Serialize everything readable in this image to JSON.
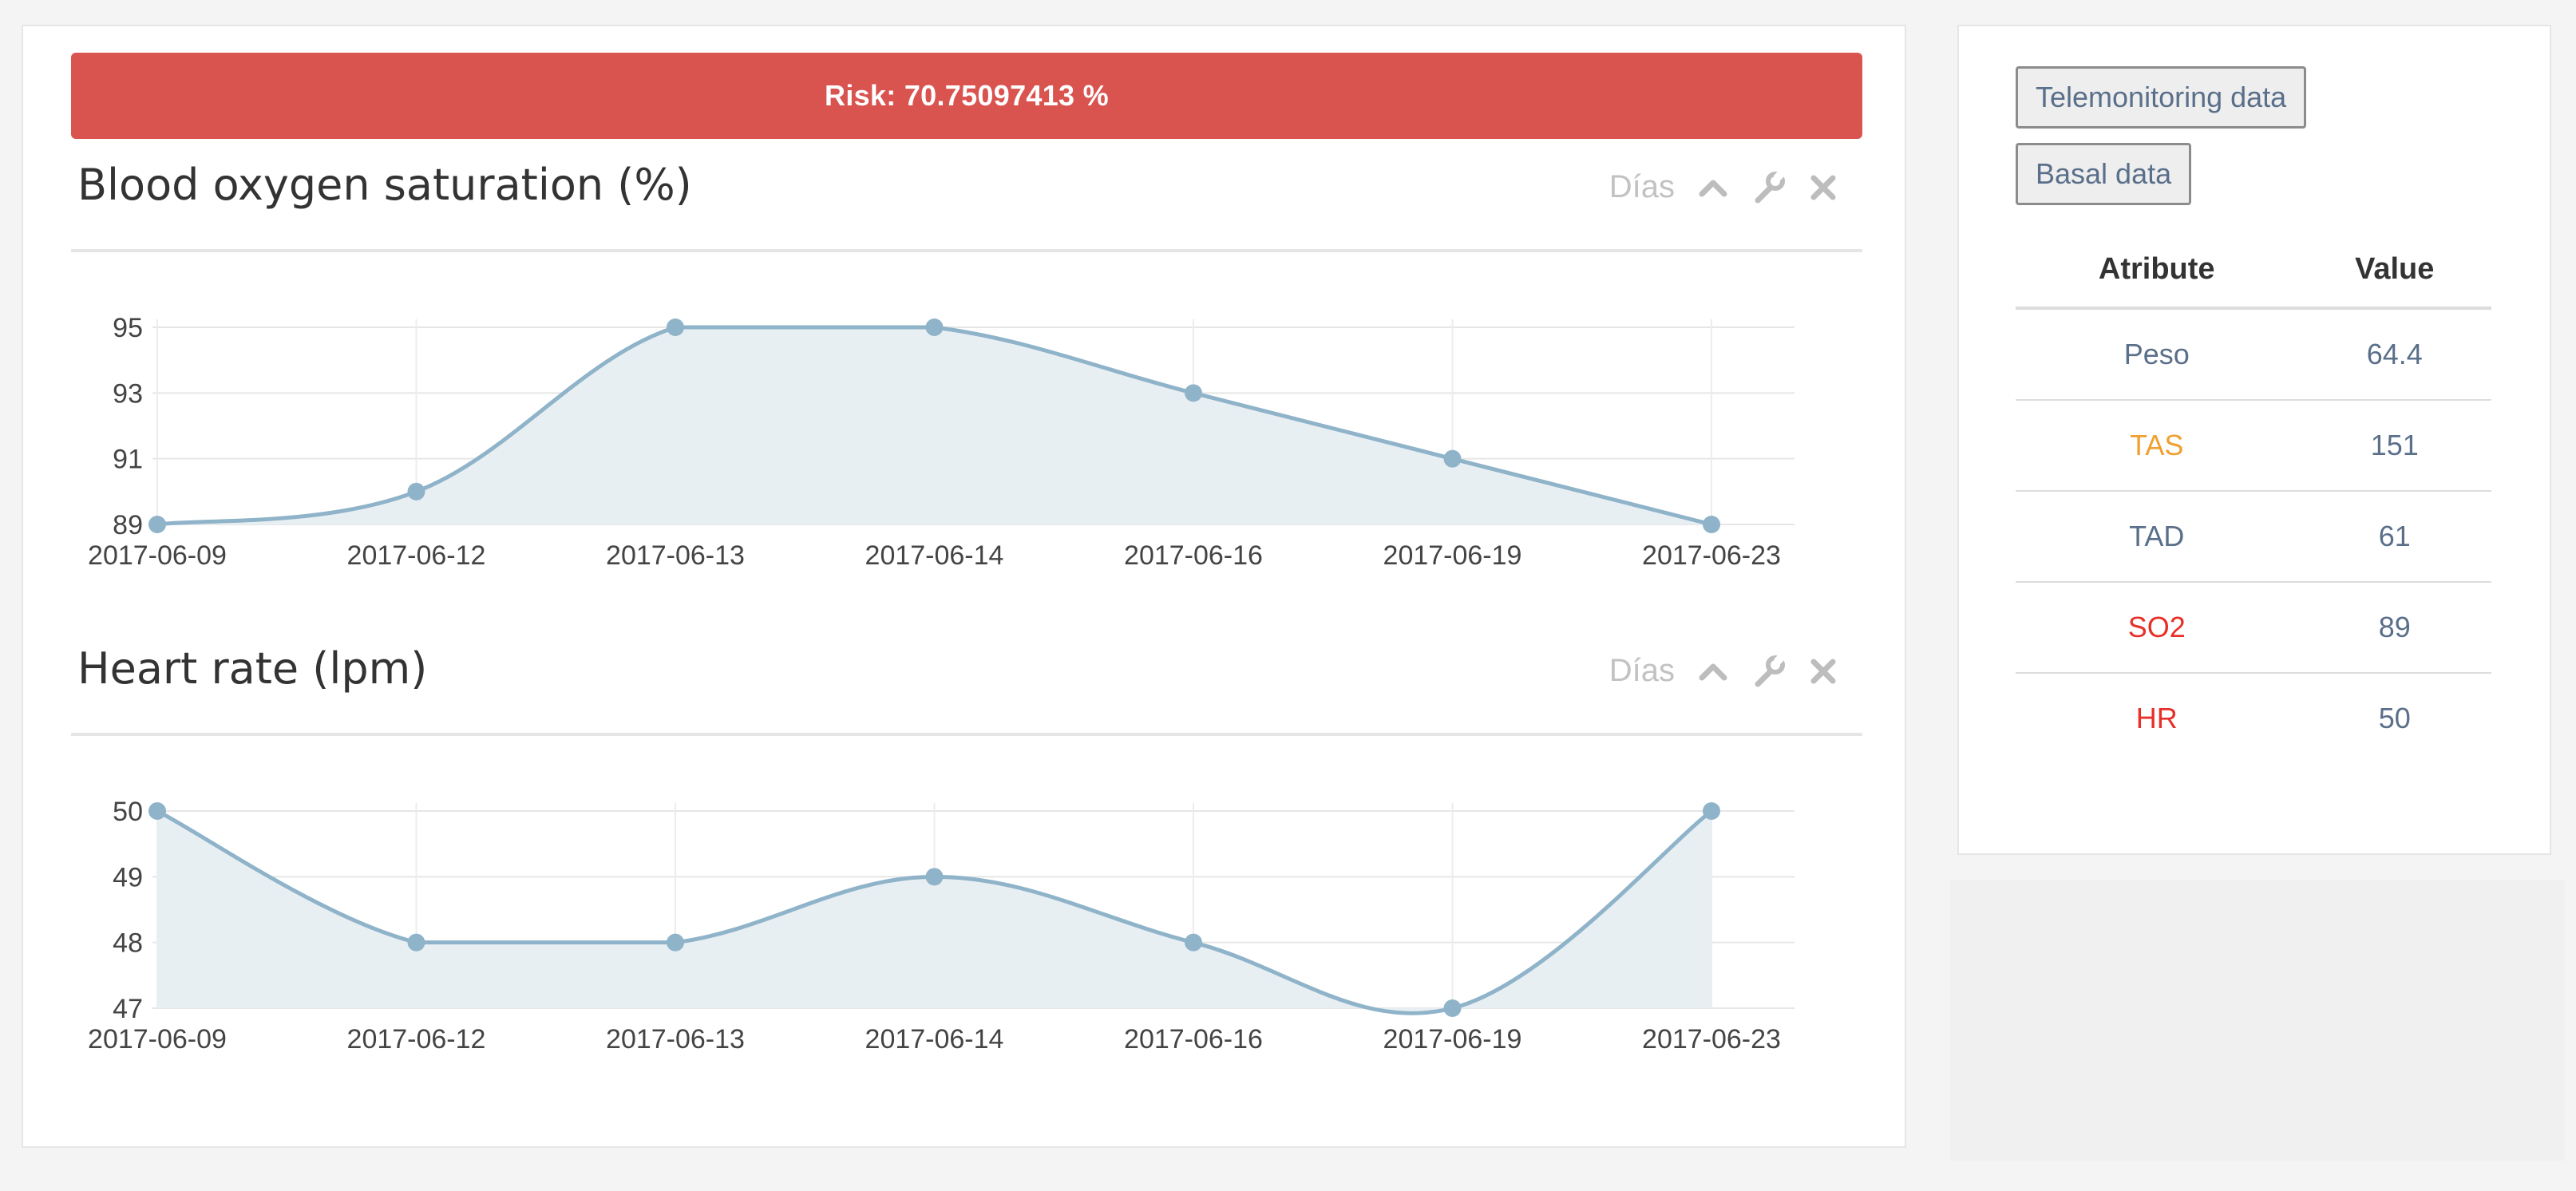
{
  "risk": {
    "text": "Risk: 70.75097413 %"
  },
  "colors": {
    "risk_bg": "#d9534f",
    "series_line": "#8fb3c9",
    "series_fill": "#e8eff3",
    "point": "#8fb3c9",
    "orange": "#f0a030",
    "red": "#e8302a",
    "default_text": "#5a6f8a"
  },
  "sections": [
    {
      "title": "Blood oxygen saturation (%)",
      "tools_label": "Días"
    },
    {
      "title": "Heart rate (lpm)",
      "tools_label": "Días"
    }
  ],
  "chart_data": [
    {
      "type": "area",
      "title": "Blood oxygen saturation (%)",
      "x": [
        "2017-06-09",
        "2017-06-12",
        "2017-06-13",
        "2017-06-14",
        "2017-06-16",
        "2017-06-19",
        "2017-06-23"
      ],
      "y": [
        89,
        90,
        95,
        95,
        93,
        91,
        89
      ],
      "yticks": [
        89,
        91,
        93,
        95
      ],
      "ylim": [
        89,
        95
      ],
      "grid": true
    },
    {
      "type": "area",
      "title": "Heart rate (lpm)",
      "x": [
        "2017-06-09",
        "2017-06-12",
        "2017-06-13",
        "2017-06-14",
        "2017-06-16",
        "2017-06-19",
        "2017-06-23"
      ],
      "y": [
        50,
        48,
        48,
        49,
        48,
        47,
        50
      ],
      "yticks": [
        47,
        48,
        49,
        50
      ],
      "ylim": [
        47,
        50
      ],
      "grid": true
    }
  ],
  "sidebar": {
    "buttons": [
      "Telemonitoring data",
      "Basal data"
    ],
    "table": {
      "headers": [
        "Atribute",
        "Value"
      ],
      "rows": [
        {
          "attr": "Peso",
          "value": "64.4",
          "color": "#5a6f8a"
        },
        {
          "attr": "TAS",
          "value": "151",
          "color": "#f0a030"
        },
        {
          "attr": "TAD",
          "value": "61",
          "color": "#5a6f8a"
        },
        {
          "attr": "SO2",
          "value": "89",
          "color": "#e8302a"
        },
        {
          "attr": "HR",
          "value": "50",
          "color": "#e8302a"
        }
      ]
    }
  }
}
